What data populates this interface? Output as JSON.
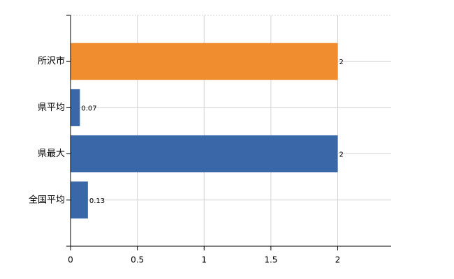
{
  "chart_data": {
    "type": "bar",
    "orientation": "horizontal",
    "categories": [
      "所沢市",
      "県平均",
      "県最大",
      "全国平均"
    ],
    "values": [
      2,
      0.07,
      2,
      0.13
    ],
    "colors": [
      "#f08d2e",
      "#3a67a8",
      "#3a67a8",
      "#3a67a8"
    ],
    "xlim": [
      0,
      2.4
    ],
    "xticks": [
      0,
      0.5,
      1,
      1.5,
      2
    ],
    "grid": true
  }
}
